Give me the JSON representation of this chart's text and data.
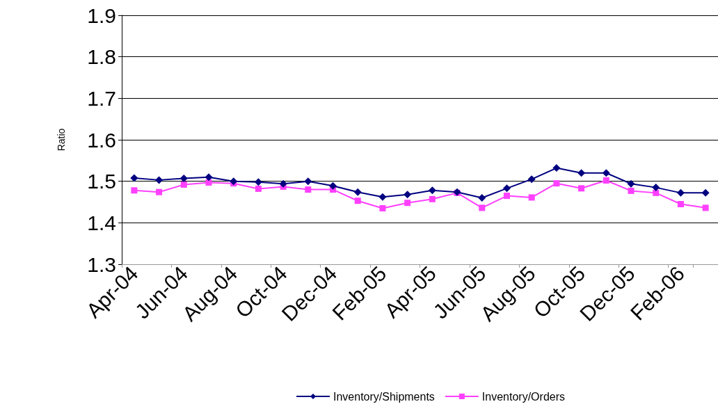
{
  "chart_data": {
    "type": "line",
    "ylabel": "Ratio",
    "categories": [
      "Apr-04",
      null,
      "Jun-04",
      null,
      "Aug-04",
      null,
      "Oct-04",
      null,
      "Dec-04",
      null,
      "Feb-05",
      null,
      "Apr-05",
      null,
      "Jun-05",
      null,
      "Aug-05",
      null,
      "Oct-05",
      null,
      "Dec-05",
      null,
      "Feb-06",
      null
    ],
    "series": [
      {
        "name": "Inventory/Shipments",
        "color": "#000080",
        "marker": "diamond",
        "values": [
          1.508,
          1.503,
          1.507,
          1.51,
          1.5,
          1.498,
          1.494,
          1.5,
          1.489,
          1.474,
          1.462,
          1.468,
          1.478,
          1.474,
          1.46,
          1.483,
          1.505,
          1.532,
          1.52,
          1.52,
          1.494,
          1.485,
          1.472,
          1.472
        ]
      },
      {
        "name": "Inventory/Orders",
        "color": "#ff40ff",
        "marker": "square",
        "values": [
          1.478,
          1.474,
          1.492,
          1.497,
          1.495,
          1.482,
          1.487,
          1.48,
          1.48,
          1.453,
          1.435,
          1.448,
          1.457,
          1.472,
          1.436,
          1.465,
          1.461,
          1.495,
          1.483,
          1.502,
          1.477,
          1.472,
          1.445,
          1.436
        ]
      }
    ],
    "ylim": [
      1.3,
      1.9
    ],
    "yticks": [
      1.3,
      1.4,
      1.5,
      1.6,
      1.7,
      1.8,
      1.9
    ],
    "grid": "y",
    "legend": "bottom",
    "line_style": "solid"
  }
}
